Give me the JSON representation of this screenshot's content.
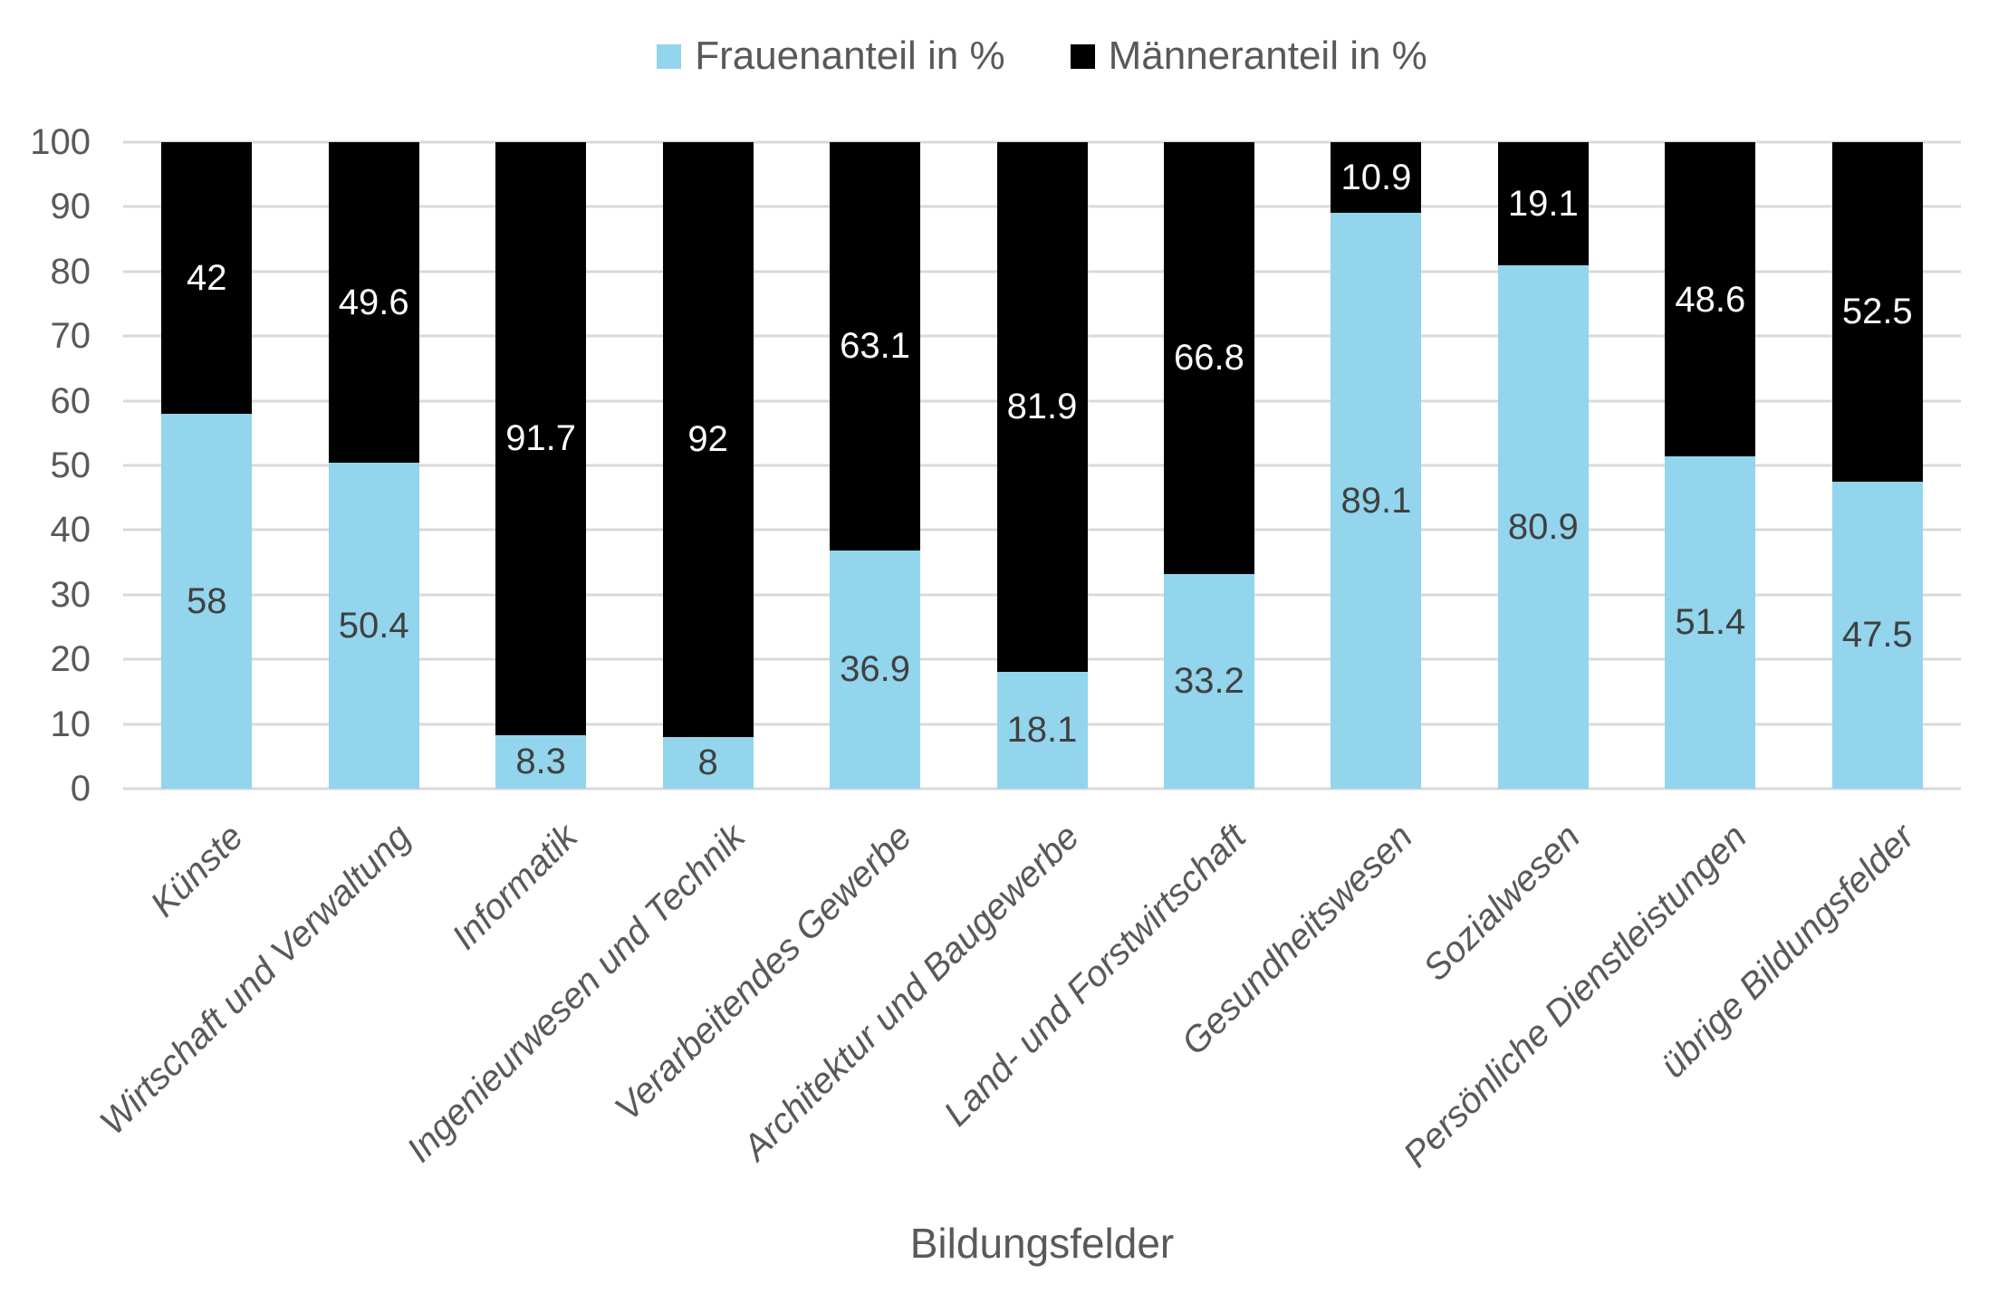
{
  "chart_data": {
    "type": "bar",
    "stacked": true,
    "title": "",
    "xlabel": "Bildungsfelder",
    "ylabel": "",
    "ylim": [
      0,
      100
    ],
    "yticks": [
      0,
      10,
      20,
      30,
      40,
      50,
      60,
      70,
      80,
      90,
      100
    ],
    "grid": true,
    "legend_position": "top",
    "categories": [
      "Künste",
      "Wirtschaft und Verwaltung",
      "Informatik",
      "Ingenieurwesen und Technik",
      "Verarbeitendes Gewerbe",
      "Architektur und Baugewerbe",
      "Land- und Forstwirtschaft",
      "Gesundheitswesen",
      "Sozialwesen",
      "Persönliche Dienstleistungen",
      "übrige Bildungsfelder"
    ],
    "series": [
      {
        "name": "Frauenanteil in %",
        "color": "#92d5ec",
        "label_color": "#404040",
        "values": [
          58,
          50.4,
          8.3,
          8,
          36.9,
          18.1,
          33.2,
          89.1,
          80.9,
          51.4,
          47.5
        ]
      },
      {
        "name": "Männeranteil in %",
        "color": "#000000",
        "label_color": "#ffffff",
        "values": [
          42,
          49.6,
          91.7,
          92,
          63.1,
          81.9,
          66.8,
          10.9,
          19.1,
          48.6,
          52.5
        ]
      }
    ],
    "style": {
      "background": "#ffffff",
      "gridline_color": "#d9d9d9",
      "axis_text_color": "#595959"
    }
  }
}
